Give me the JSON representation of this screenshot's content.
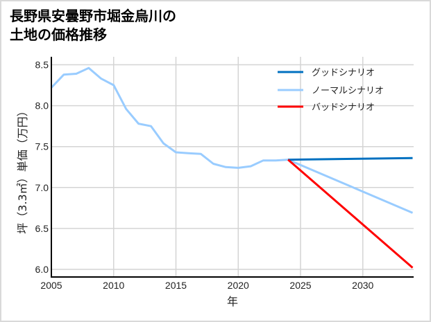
{
  "title_line1": "長野県安曇野市堀金烏川の",
  "title_line2": "土地の価格推移",
  "chart_data": {
    "type": "line",
    "title": "長野県安曇野市堀金烏川の土地の価格推移",
    "xlabel": "年",
    "ylabel": "坪（3.3㎡）単価（万円）",
    "xlim": [
      2005,
      2034
    ],
    "ylim": [
      5.95,
      8.6
    ],
    "xticks": [
      2005,
      2010,
      2015,
      2020,
      2025,
      2030
    ],
    "yticks": [
      6.0,
      6.5,
      7.0,
      7.5,
      8.0,
      8.5
    ],
    "ytick_labels": [
      "6.0",
      "6.5",
      "7.0",
      "7.5",
      "8.0",
      "8.5"
    ],
    "grid": true,
    "legend_position": "upper right",
    "series": [
      {
        "name": "グッドシナリオ",
        "color": "#0070C0",
        "x": [
          2024,
          2034
        ],
        "values": [
          7.34,
          7.36
        ]
      },
      {
        "name": "ノーマルシナリオ",
        "color": "#99CCFF",
        "x": [
          2005,
          2006,
          2007,
          2008,
          2009,
          2010,
          2011,
          2012,
          2013,
          2014,
          2015,
          2016,
          2017,
          2018,
          2019,
          2020,
          2021,
          2022,
          2023,
          2024,
          2034
        ],
        "values": [
          8.22,
          8.38,
          8.39,
          8.46,
          8.33,
          8.25,
          7.96,
          7.78,
          7.75,
          7.54,
          7.43,
          7.42,
          7.41,
          7.29,
          7.25,
          7.24,
          7.26,
          7.33,
          7.33,
          7.34,
          6.69
        ]
      },
      {
        "name": "バッドシナリオ",
        "color": "#FF0000",
        "x": [
          2024,
          2034
        ],
        "values": [
          7.34,
          6.02
        ]
      }
    ]
  }
}
